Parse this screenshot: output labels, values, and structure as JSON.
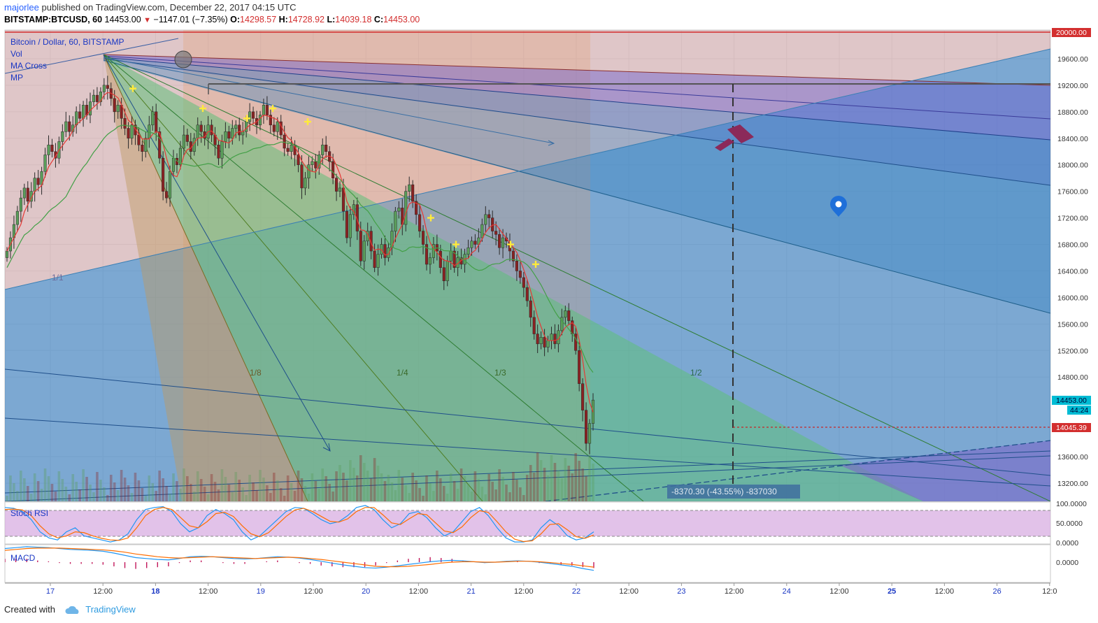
{
  "header": {
    "author": "majorlee",
    "published": "published on TradingView.com, December 22, 2017 04:15 UTC",
    "symbol": "BITSTAMP:BTCUSD, 60",
    "last": "14453.00",
    "change": "−1147.01 (−7.35%)",
    "open_label": "O:",
    "open": "14298.57",
    "high_label": "H:",
    "high": "14728.92",
    "low_label": "L:",
    "low": "14039.18",
    "close_label": "C:",
    "close": "14453.00"
  },
  "legend": {
    "title": "Bitcoin / Dollar, 60, BITSTAMP",
    "items": [
      "Vol",
      "MA Cross",
      "MP"
    ]
  },
  "price_axis": {
    "ticks": [
      "19600.00",
      "19200.00",
      "18800.00",
      "18400.00",
      "18000.00",
      "17600.00",
      "17200.00",
      "16800.00",
      "16400.00",
      "16000.00",
      "15600.00",
      "15200.00",
      "14800.00",
      "13600.00",
      "13200.00"
    ],
    "top_tag": "20000.00",
    "last_tag": "14453.00",
    "timer_tag": "44:24",
    "line_tag": "14045.39"
  },
  "fan_labels": [
    "1/1",
    "1/8",
    "1/4",
    "1/3",
    "1/2"
  ],
  "measure_label": "-8370.30 (-43.55%) -837030",
  "stoch": {
    "title": "Stoch RSI",
    "ticks": [
      "100.0000",
      "50.0000",
      "0.0000"
    ]
  },
  "macd": {
    "title": "MACD",
    "ticks": [
      "0.0000"
    ]
  },
  "time_axis": [
    "17",
    "12:00",
    "18",
    "12:00",
    "19",
    "12:00",
    "20",
    "12:00",
    "21",
    "12:00",
    "22",
    "12:00",
    "23",
    "12:00",
    "24",
    "12:00",
    "25",
    "12:00",
    "26",
    "12:0"
  ],
  "colors": {
    "up": "#5a9e5a",
    "down": "#8b2222",
    "ma_fast": "#e53935",
    "ma_slow": "#43a047",
    "accent": "#2962ff",
    "pin": "#1e6fd9",
    "marker": "#ffeb3b"
  },
  "chart_data": {
    "type": "candlestick",
    "symbol": "BITSTAMP:BTCUSD",
    "ylim": [
      13000,
      20000
    ],
    "close": [
      16700,
      16900,
      17100,
      17300,
      17500,
      17650,
      17450,
      17600,
      17800,
      17700,
      17900,
      18150,
      18300,
      18200,
      18100,
      18350,
      18500,
      18650,
      18500,
      18600,
      18800,
      18700,
      18900,
      18750,
      18950,
      19050,
      18950,
      19100,
      19200,
      19150,
      19000,
      18800,
      18900,
      18700,
      18550,
      18400,
      18600,
      18450,
      18300,
      18200,
      18400,
      18600,
      18800,
      18500,
      18100,
      17600,
      17500,
      17900,
      18100,
      18000,
      18250,
      18450,
      18350,
      18200,
      18400,
      18600,
      18500,
      18400,
      18600,
      18450,
      18300,
      18100,
      18350,
      18500,
      18400,
      18550,
      18600,
      18450,
      18500,
      18650,
      18800,
      18700,
      18600,
      18750,
      18900,
      18750,
      18600,
      18500,
      18650,
      18450,
      18250,
      18200,
      18300,
      18150,
      18000,
      17650,
      17800,
      18000,
      18050,
      17950,
      18150,
      18300,
      18200,
      18050,
      17800,
      17600,
      17650,
      17300,
      16900,
      17250,
      17400,
      17000,
      16550,
      16850,
      17000,
      16700,
      16450,
      16650,
      16800,
      16600,
      16750,
      17000,
      17300,
      17350,
      17100,
      17600,
      17700,
      17450,
      17250,
      17000,
      16800,
      16500,
      16600,
      16800,
      16700,
      16450,
      16250,
      16550,
      16700,
      16450,
      16600,
      16500,
      16650,
      16750,
      16850,
      16800,
      16900,
      17100,
      17250,
      17200,
      17000,
      16950,
      16750,
      16900,
      16850,
      16700,
      16550,
      16400,
      16300,
      16150,
      15950,
      15700,
      15450,
      15300,
      15400,
      15250,
      15350,
      15450,
      15300,
      15500,
      15700,
      15800,
      15650,
      15450,
      15200,
      14700,
      14300,
      13800,
      14100,
      14453
    ],
    "markers_price": [
      19150,
      18850,
      18700,
      18850,
      18650,
      17200,
      16800,
      16800,
      16500
    ],
    "stoch_rsi_k": [
      90,
      88,
      80,
      60,
      30,
      15,
      10,
      30,
      40,
      20,
      15,
      10,
      5,
      10,
      25,
      60,
      85,
      90,
      92,
      80,
      50,
      30,
      40,
      70,
      85,
      75,
      60,
      30,
      10,
      20,
      40,
      60,
      80,
      90,
      88,
      75,
      60,
      50,
      55,
      70,
      90,
      95,
      85,
      60,
      40,
      50,
      75,
      80,
      65,
      40,
      20,
      30,
      55,
      80,
      90,
      70,
      40,
      15,
      5,
      5,
      10,
      40,
      60,
      45,
      20,
      10,
      15,
      30
    ],
    "stoch_rsi_d": [
      85,
      86,
      84,
      70,
      45,
      25,
      15,
      20,
      30,
      28,
      20,
      14,
      10,
      9,
      15,
      40,
      70,
      85,
      90,
      85,
      65,
      45,
      40,
      55,
      75,
      78,
      68,
      45,
      25,
      18,
      28,
      48,
      68,
      84,
      88,
      80,
      68,
      56,
      54,
      62,
      80,
      90,
      90,
      72,
      52,
      48,
      62,
      75,
      72,
      52,
      32,
      28,
      42,
      65,
      82,
      78,
      55,
      30,
      12,
      6,
      8,
      25,
      48,
      50,
      35,
      18,
      14,
      22
    ],
    "macd_line": [
      30,
      32,
      34,
      33,
      32,
      30,
      28,
      27,
      26,
      24,
      20,
      15,
      10,
      8,
      6,
      5,
      8,
      12,
      13,
      12,
      10,
      8,
      7,
      8,
      10,
      12,
      11,
      9,
      6,
      2,
      -2,
      -6,
      -9,
      -12,
      -13,
      -11,
      -8,
      -5,
      -2,
      1,
      3,
      4,
      3,
      1,
      -1,
      0,
      2,
      3,
      2,
      0,
      -3,
      -6,
      -9,
      -14,
      -18
    ],
    "macd_signal": [
      26,
      28,
      30,
      31,
      31,
      31,
      30,
      29,
      28,
      27,
      25,
      22,
      18,
      15,
      12,
      10,
      9,
      10,
      11,
      12,
      11,
      10,
      9,
      8,
      9,
      10,
      11,
      10,
      8,
      6,
      3,
      0,
      -3,
      -6,
      -9,
      -10,
      -10,
      -9,
      -7,
      -5,
      -2,
      0,
      1,
      1,
      0,
      0,
      1,
      2,
      2,
      1,
      -1,
      -3,
      -5,
      -8,
      -11
    ]
  }
}
